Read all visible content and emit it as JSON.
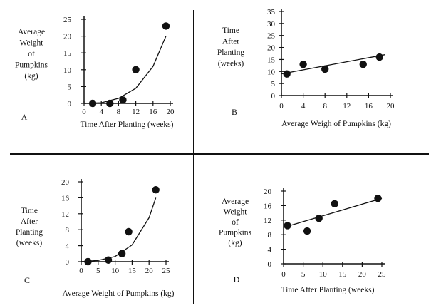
{
  "panels": [
    {
      "panel_label": "A",
      "ylabel_lines": [
        "Average",
        "Weight",
        "of",
        "Pumpkins",
        "(kg)"
      ],
      "xlabel": "Time After Planting (weeks)",
      "xticks": [
        "0",
        "4",
        "8",
        "12",
        "16",
        "20"
      ],
      "yticks": [
        "0",
        "5",
        "10",
        "15",
        "20",
        "25"
      ],
      "fit": "curve"
    },
    {
      "panel_label": "B",
      "ylabel_lines": [
        "Time",
        "After",
        "Planting",
        "(weeks)"
      ],
      "xlabel": "Average Weigh of Pumpkins (kg)",
      "xticks": [
        "0",
        "4",
        "8",
        "12",
        "16",
        "20"
      ],
      "yticks": [
        "0",
        "5",
        "10",
        "15",
        "20",
        "25",
        "30",
        "35"
      ],
      "fit": "line"
    },
    {
      "panel_label": "C",
      "ylabel_lines": [
        "Time",
        "After",
        "Planting",
        "(weeks)"
      ],
      "xlabel": "Average Weight of Pumpkins (kg)",
      "xticks": [
        "0",
        "5",
        "10",
        "15",
        "20",
        "25"
      ],
      "yticks": [
        "0",
        "4",
        "8",
        "12",
        "16",
        "20"
      ],
      "fit": "curve"
    },
    {
      "panel_label": "D",
      "ylabel_lines": [
        "Average",
        "Weight",
        "of",
        "Pumpkins",
        "(kg)"
      ],
      "xlabel": "Time After Planting (weeks)",
      "xticks": [
        "0",
        "5",
        "10",
        "15",
        "20",
        "25"
      ],
      "yticks": [
        "0",
        "4",
        "8",
        "12",
        "16",
        "20"
      ],
      "fit": "line"
    }
  ],
  "chart_data": [
    {
      "type": "scatter",
      "x": [
        2,
        6,
        9,
        12,
        19
      ],
      "y": [
        0,
        0,
        1,
        10,
        23
      ],
      "xlim": [
        0,
        20
      ],
      "ylim": [
        0,
        25
      ],
      "fit_curve": {
        "x": [
          0,
          4,
          8,
          12,
          16,
          19
        ],
        "y": [
          0,
          0.2,
          1.5,
          4.5,
          11,
          20
        ]
      },
      "xlabel": "Time After Planting (weeks)",
      "ylabel": "Average Weight of Pumpkins (kg)"
    },
    {
      "type": "scatter",
      "x": [
        1,
        4,
        8,
        15,
        18
      ],
      "y": [
        9,
        13,
        11,
        13,
        16
      ],
      "xlim": [
        0,
        20
      ],
      "ylim": [
        0,
        35
      ],
      "fit_line": {
        "x": [
          0,
          19
        ],
        "y": [
          9,
          17
        ]
      },
      "xlabel": "Average Weigh of Pumpkins (kg)",
      "ylabel": "Time After Planting (weeks)"
    },
    {
      "type": "scatter",
      "x": [
        2,
        8,
        12,
        14,
        22
      ],
      "y": [
        0,
        0.4,
        2,
        7.5,
        18
      ],
      "xlim": [
        0,
        25
      ],
      "ylim": [
        0,
        20
      ],
      "fit_curve": {
        "x": [
          0,
          5,
          10,
          15,
          20,
          22
        ],
        "y": [
          0,
          0.3,
          1.3,
          4.2,
          11,
          16
        ]
      },
      "xlabel": "Average Weight of Pumpkins (kg)",
      "ylabel": "Time After Planting (weeks)"
    },
    {
      "type": "scatter",
      "x": [
        1,
        6,
        9,
        13,
        24
      ],
      "y": [
        10.5,
        9,
        12.5,
        16.5,
        18
      ],
      "xlim": [
        0,
        25
      ],
      "ylim": [
        0,
        20
      ],
      "fit_line": {
        "x": [
          0,
          25
        ],
        "y": [
          10,
          18
        ]
      },
      "xlabel": "Time After Planting (weeks)",
      "ylabel": "Average Weight of Pumpkins (kg)"
    }
  ]
}
